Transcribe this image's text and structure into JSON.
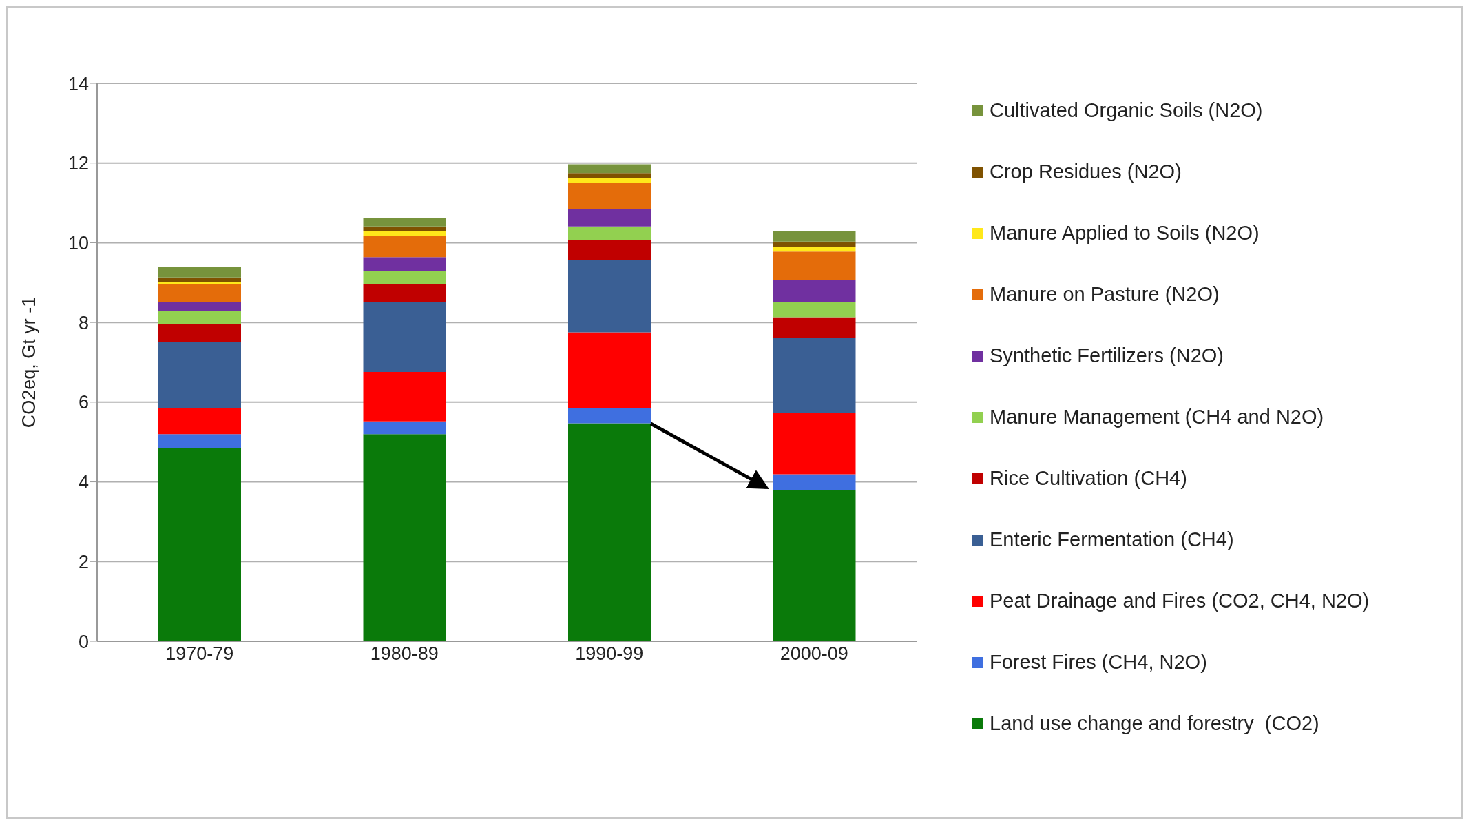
{
  "chart_data": {
    "type": "bar",
    "stacked": true,
    "ylabel": "CO2eq, Gt yr -1",
    "categories": [
      "1970-79",
      "1980-89",
      "1990-99",
      "2000-09"
    ],
    "ylim": [
      0,
      14
    ],
    "yticks": [
      0,
      2,
      4,
      6,
      8,
      10,
      12,
      14
    ],
    "grid": "y",
    "legend": "right",
    "series": [
      {
        "name": "Land use change and forestry  (CO2)",
        "color": "#0a7a0a",
        "values": [
          4.84,
          5.2,
          5.47,
          3.8
        ]
      },
      {
        "name": "Forest Fires (CH4, N2O)",
        "color": "#3f6fe0",
        "values": [
          0.36,
          0.32,
          0.37,
          0.39
        ]
      },
      {
        "name": "Peat Drainage and Fires (CO2, CH4, N2O)",
        "color": "#ff0000",
        "values": [
          0.66,
          1.24,
          1.91,
          1.55
        ]
      },
      {
        "name": "Enteric Fermentation (CH4)",
        "color": "#3a5f94",
        "values": [
          1.65,
          1.75,
          1.82,
          1.88
        ]
      },
      {
        "name": "Rice Cultivation (CH4)",
        "color": "#c00000",
        "values": [
          0.45,
          0.45,
          0.49,
          0.51
        ]
      },
      {
        "name": "Manure Management (CH4 and N2O)",
        "color": "#92d050",
        "values": [
          0.33,
          0.34,
          0.35,
          0.38
        ]
      },
      {
        "name": "Synthetic Fertilizers (N2O)",
        "color": "#7030a0",
        "values": [
          0.22,
          0.34,
          0.43,
          0.55
        ]
      },
      {
        "name": "Manure on Pasture (N2O)",
        "color": "#e46c0a",
        "values": [
          0.45,
          0.53,
          0.67,
          0.72
        ]
      },
      {
        "name": "Manure Applied to Soils (N2O)",
        "color": "#ffe81a",
        "values": [
          0.06,
          0.13,
          0.12,
          0.12
        ]
      },
      {
        "name": "Crop Residues (N2O)",
        "color": "#7f5200",
        "values": [
          0.11,
          0.11,
          0.12,
          0.13
        ]
      },
      {
        "name": "Cultivated Organic Soils (N2O)",
        "color": "#77933c",
        "values": [
          0.27,
          0.21,
          0.22,
          0.26
        ]
      }
    ]
  }
}
